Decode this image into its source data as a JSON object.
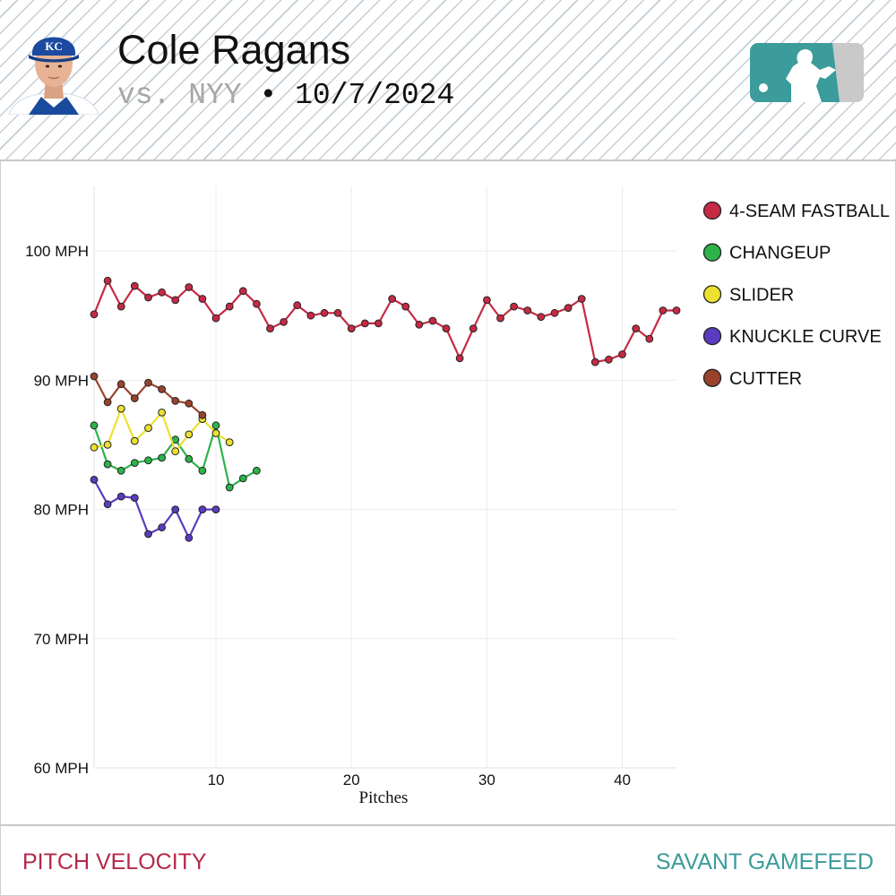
{
  "header": {
    "player_name": "Cole Ragans",
    "vs_text": "vs. NYY",
    "separator": "•",
    "date": "10/7/2024",
    "cap_logo_text": "KC"
  },
  "footer": {
    "left_label": "PITCH VELOCITY",
    "right_label": "SAVANT GAMEFEED"
  },
  "colors": {
    "4-SEAM FASTBALL": "#c52a44",
    "CHANGEUP": "#2db34a",
    "SLIDER": "#ece130",
    "KNUCKLE CURVE": "#5b3bbf",
    "CUTTER": "#99432d",
    "footer_left": "#b5284a",
    "footer_right": "#3c9b9b",
    "mlb_logo": "#3c9b9b"
  },
  "chart_data": {
    "type": "line",
    "xlabel": "Pitches",
    "ylabel": "",
    "xlim": [
      1,
      44
    ],
    "ylim": [
      60,
      105
    ],
    "x_ticks": [
      10,
      20,
      30,
      40
    ],
    "y_ticks": [
      100,
      90,
      80,
      70,
      60
    ],
    "y_tick_labels": [
      "100 MPH",
      "90 MPH",
      "80 MPH",
      "70 MPH",
      "60 MPH"
    ],
    "grid": true,
    "legend_position": "top-right",
    "series": [
      {
        "name": "4-SEAM FASTBALL",
        "x": [
          1,
          2,
          3,
          4,
          5,
          6,
          7,
          8,
          9,
          10,
          11,
          12,
          13,
          14,
          15,
          16,
          17,
          18,
          19,
          20,
          21,
          22,
          23,
          24,
          25,
          26,
          27,
          28,
          29,
          30,
          31,
          32,
          33,
          34,
          35,
          36,
          37,
          38,
          39,
          40,
          41,
          42,
          43,
          44
        ],
        "values": [
          95.1,
          97.7,
          95.7,
          97.3,
          96.4,
          96.8,
          96.2,
          97.2,
          96.3,
          94.8,
          95.7,
          96.9,
          95.9,
          94.0,
          94.5,
          95.8,
          95.0,
          95.2,
          95.2,
          94.0,
          94.4,
          94.4,
          96.3,
          95.7,
          94.3,
          94.6,
          94.0,
          91.7,
          94.0,
          96.2,
          94.8,
          95.7,
          95.4,
          94.9,
          95.2,
          95.6,
          96.3,
          91.4,
          91.6,
          92.0,
          94.0,
          93.2,
          95.4,
          95.4
        ]
      },
      {
        "name": "CHANGEUP",
        "x": [
          1,
          2,
          3,
          4,
          5,
          6,
          7,
          8,
          9,
          10,
          11,
          12,
          13
        ],
        "values": [
          86.5,
          83.5,
          83.0,
          83.6,
          83.8,
          84.0,
          85.4,
          83.9,
          83.0,
          86.5,
          81.7,
          82.4,
          83.0
        ]
      },
      {
        "name": "SLIDER",
        "x": [
          1,
          2,
          3,
          4,
          5,
          6,
          7,
          8,
          9,
          10,
          11
        ],
        "values": [
          84.8,
          85.0,
          87.8,
          85.3,
          86.3,
          87.5,
          84.5,
          85.8,
          87.0,
          85.9,
          85.2
        ]
      },
      {
        "name": "KNUCKLE CURVE",
        "x": [
          1,
          2,
          3,
          4,
          5,
          6,
          7,
          8,
          9,
          10
        ],
        "values": [
          82.3,
          80.4,
          81.0,
          80.9,
          78.1,
          78.6,
          80.0,
          77.8,
          80.0,
          80.0
        ]
      },
      {
        "name": "CUTTER",
        "x": [
          1,
          2,
          3,
          4,
          5,
          6,
          7,
          8,
          9
        ],
        "values": [
          90.3,
          88.3,
          89.7,
          88.6,
          89.8,
          89.3,
          88.4,
          88.2,
          87.3
        ]
      }
    ]
  }
}
